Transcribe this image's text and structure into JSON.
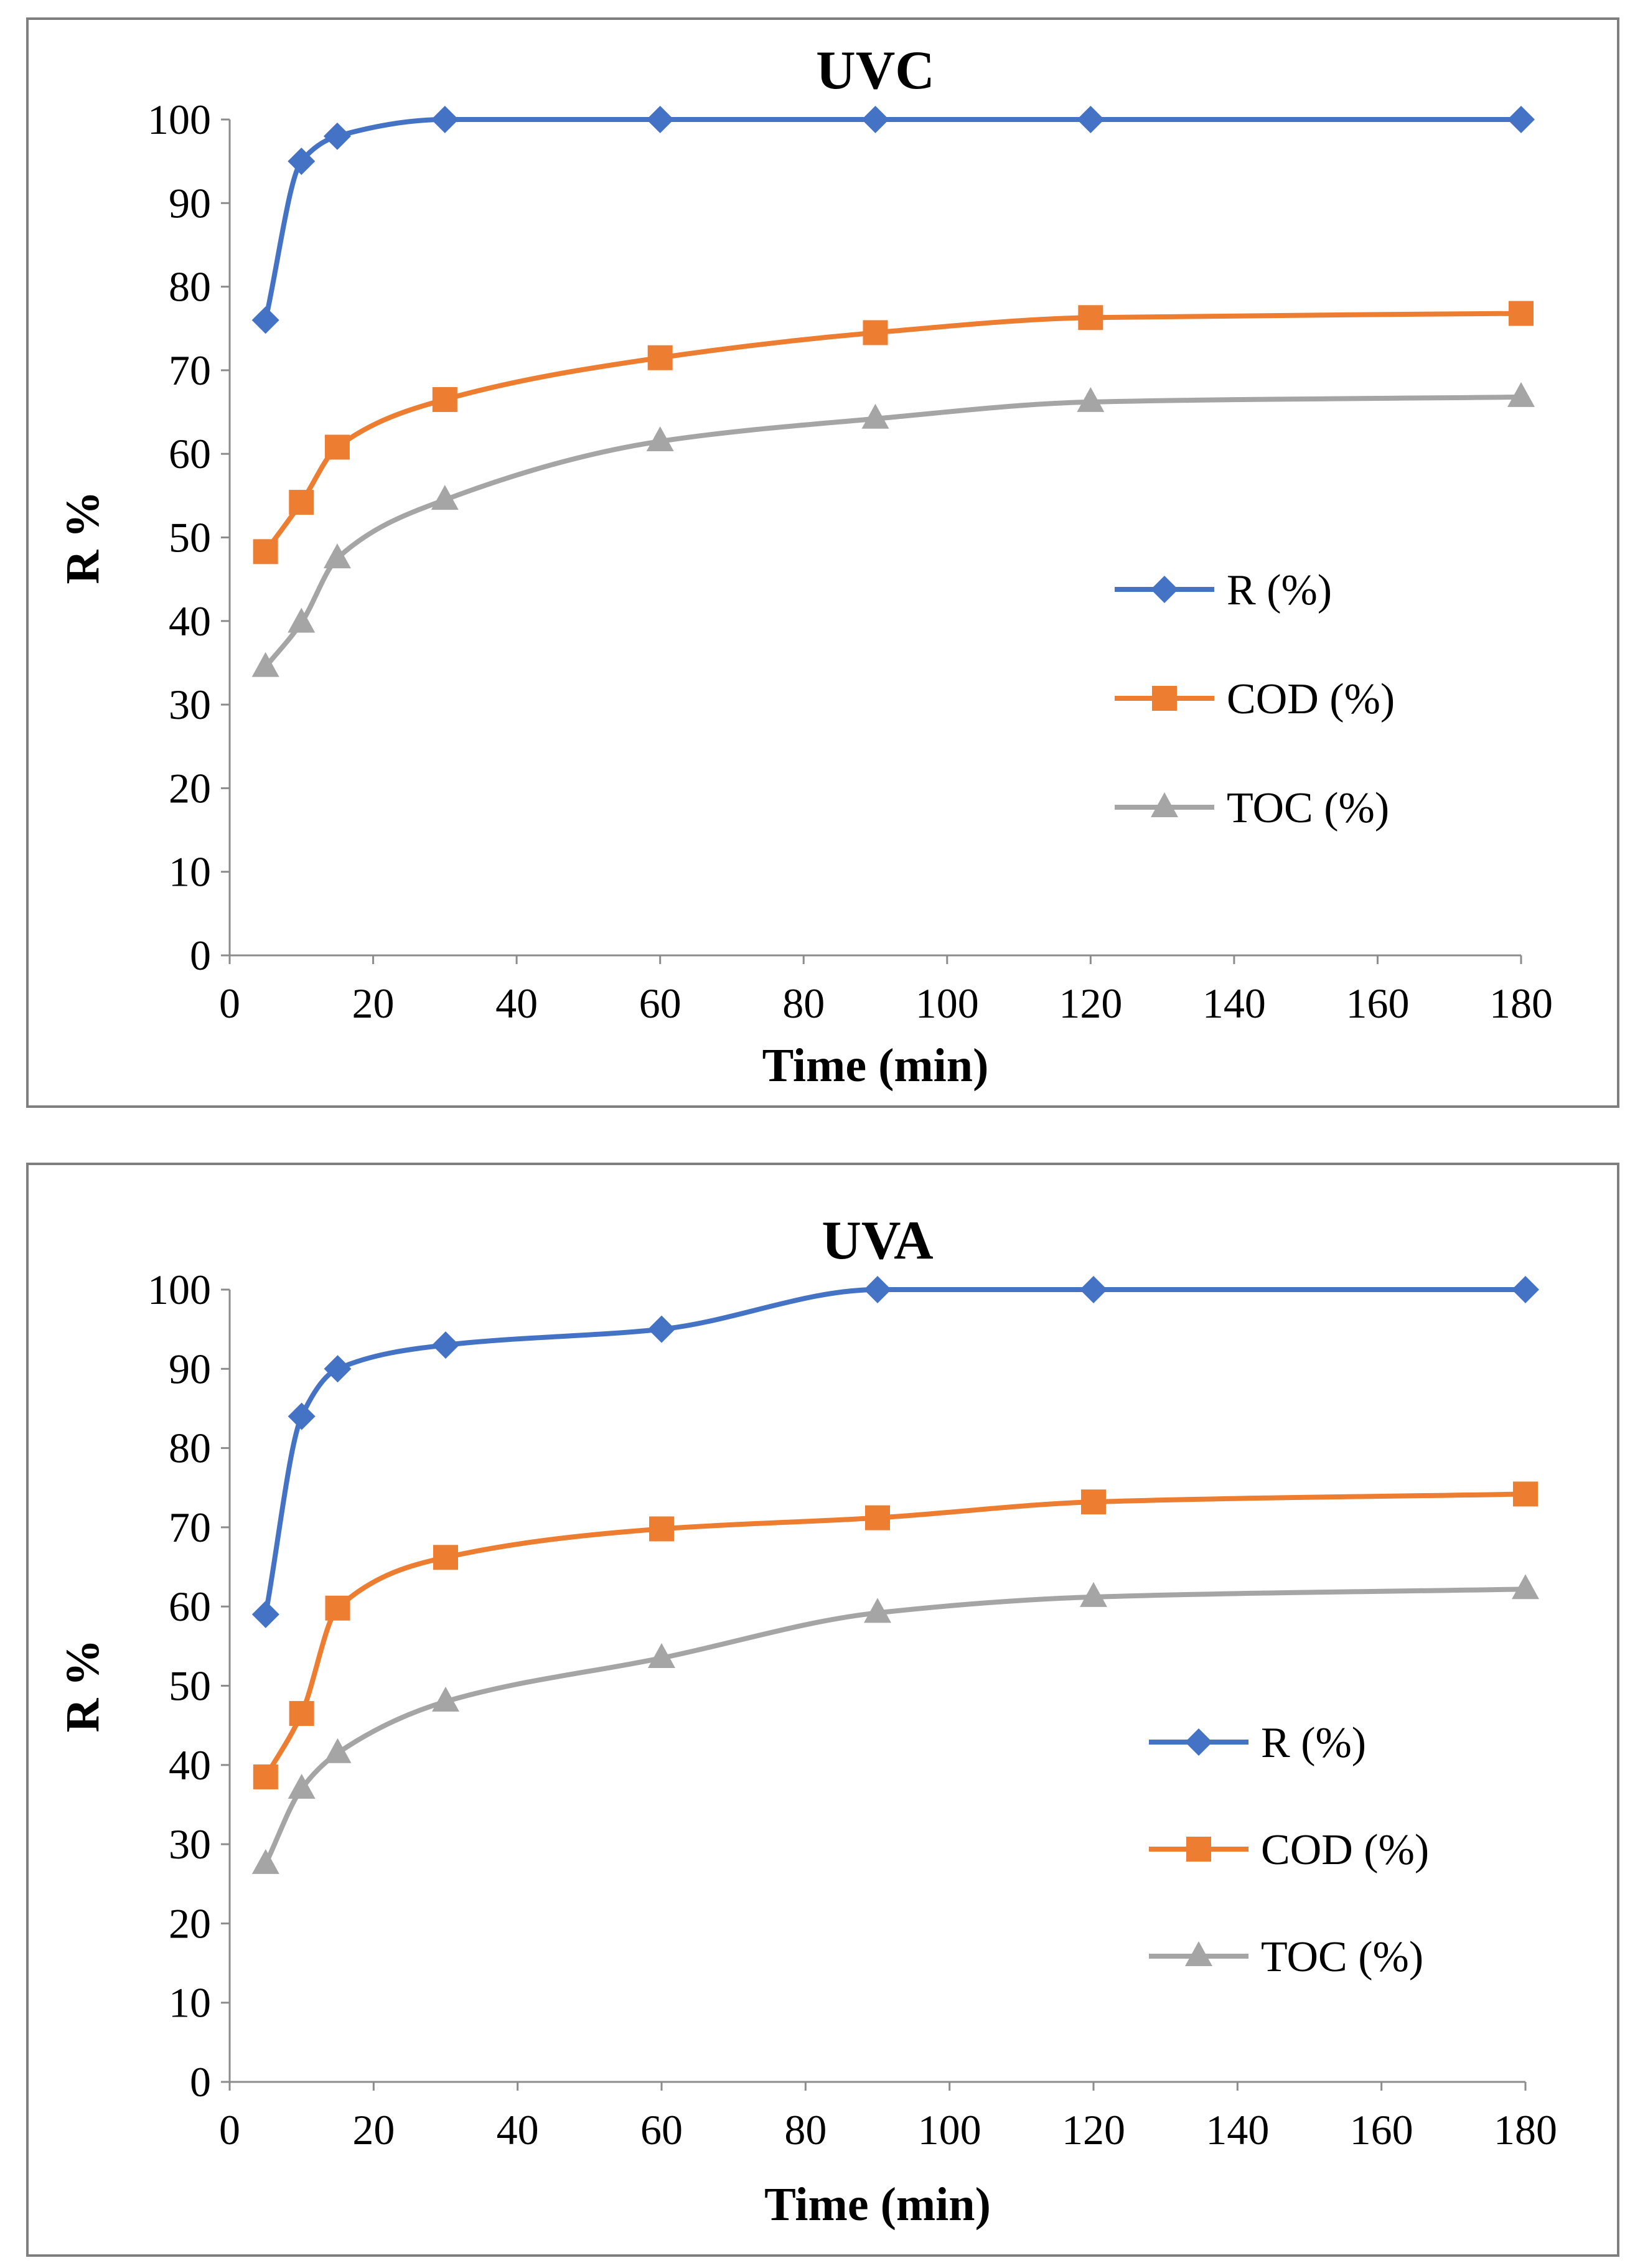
{
  "chart_data": [
    {
      "type": "line",
      "title": "UVC",
      "xlabel": "Time (min)",
      "ylabel": "R %",
      "xlim": [
        0,
        180
      ],
      "ylim": [
        0,
        100
      ],
      "xticks": [
        0,
        20,
        40,
        60,
        80,
        100,
        120,
        140,
        160,
        180
      ],
      "yticks": [
        0,
        10,
        20,
        30,
        40,
        50,
        60,
        70,
        80,
        90,
        100
      ],
      "x": [
        5,
        10,
        15,
        30,
        60,
        90,
        120,
        180
      ],
      "legend_position": "center-right",
      "series": [
        {
          "name": "R (%)",
          "color": "#4472c4",
          "marker": "diamond",
          "values": [
            76,
            95,
            98,
            100,
            100,
            100,
            100,
            100
          ]
        },
        {
          "name": "COD (%)",
          "color": "#ed7d31",
          "marker": "square",
          "values": [
            48.3,
            54.2,
            60.8,
            66.5,
            71.5,
            74.5,
            76.3,
            76.8
          ]
        },
        {
          "name": "TOC (%)",
          "color": "#a5a5a5",
          "marker": "triangle",
          "values": [
            34.5,
            39.8,
            47.5,
            54.5,
            61.5,
            64.2,
            66.2,
            66.8
          ]
        }
      ]
    },
    {
      "type": "line",
      "title": "UVA",
      "xlabel": "Time (min)",
      "ylabel": "R %",
      "xlim": [
        0,
        180
      ],
      "ylim": [
        0,
        100
      ],
      "xticks": [
        0,
        20,
        40,
        60,
        80,
        100,
        120,
        140,
        160,
        180
      ],
      "yticks": [
        0,
        10,
        20,
        30,
        40,
        50,
        60,
        70,
        80,
        90,
        100
      ],
      "x": [
        5,
        10,
        15,
        30,
        60,
        90,
        120,
        180
      ],
      "legend_position": "center-right",
      "series": [
        {
          "name": "R (%)",
          "color": "#4472c4",
          "marker": "diamond",
          "values": [
            59,
            84,
            90,
            93,
            95,
            100,
            100,
            100
          ]
        },
        {
          "name": "COD (%)",
          "color": "#ed7d31",
          "marker": "square",
          "values": [
            38.5,
            46.5,
            59.8,
            66.2,
            69.8,
            71.2,
            73.2,
            74.2
          ]
        },
        {
          "name": "TOC (%)",
          "color": "#a5a5a5",
          "marker": "triangle",
          "values": [
            27.5,
            37,
            41.5,
            48,
            53.5,
            59.2,
            61.2,
            62.2
          ]
        }
      ]
    }
  ]
}
